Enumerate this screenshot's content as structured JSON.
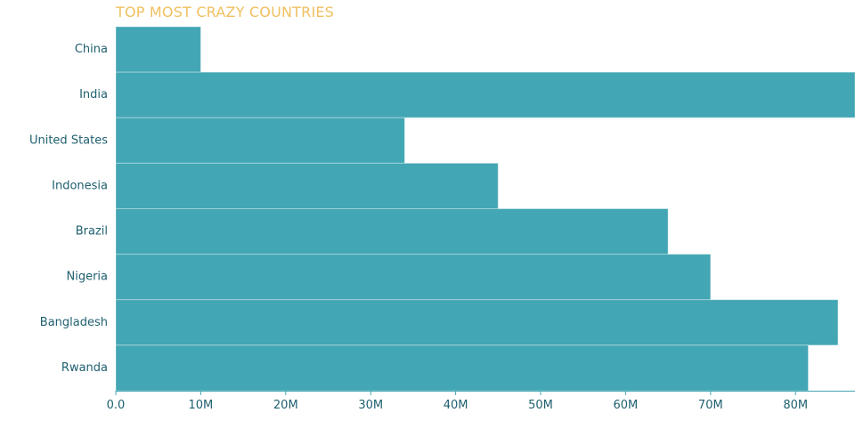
{
  "chart_data": {
    "type": "bar",
    "orientation": "horizontal",
    "title": "TOP MOST CRAZY COUNTRIES",
    "categories": [
      "China",
      "India",
      "United States",
      "Indonesia",
      "Brazil",
      "Nigeria",
      "Bangladesh",
      "Rwanda"
    ],
    "values": [
      10000000,
      87000000,
      34000000,
      45000000,
      65000000,
      70000000,
      85000000,
      81500000
    ],
    "xlim": [
      0,
      87000000
    ],
    "xticks": [
      0,
      10000000,
      20000000,
      30000000,
      40000000,
      50000000,
      60000000,
      70000000,
      80000000
    ],
    "xtick_labels": [
      "0.0",
      "10M",
      "20M",
      "30M",
      "40M",
      "50M",
      "60M",
      "70M",
      "80M"
    ],
    "xlabel": "",
    "ylabel": "",
    "grid": false,
    "legend": "none",
    "colors": {
      "bar": "#43a6b4",
      "title": "#f0c060",
      "labels": "#1f5f6f",
      "axis": "#43a6b4"
    }
  }
}
